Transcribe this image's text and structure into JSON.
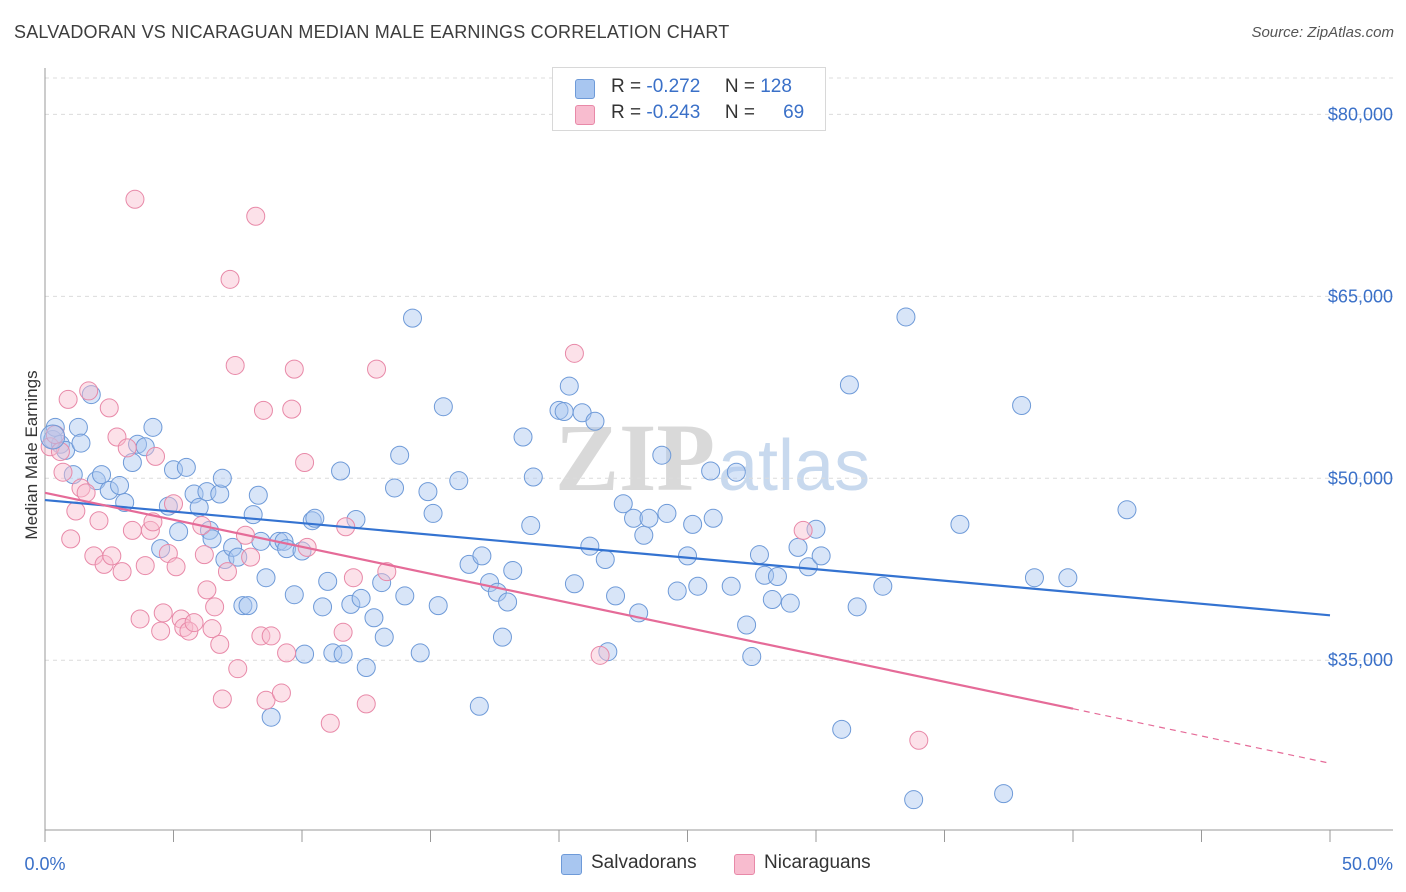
{
  "title": "SALVADORAN VS NICARAGUAN MEDIAN MALE EARNINGS CORRELATION CHART",
  "source": "Source: ZipAtlas.com",
  "watermark": {
    "zip": "ZIP",
    "atlas": "atlas"
  },
  "legend": {
    "rows": [
      {
        "r_label": "R =",
        "r_value": "-0.272",
        "n_label": "N =",
        "n_value": "128",
        "color": "#a8c6f0",
        "border": "#6e9ad8"
      },
      {
        "r_label": "R =",
        "r_value": "-0.243",
        "n_label": "N =",
        "n_value": "69",
        "color": "#f8bccf",
        "border": "#e889a8"
      }
    ]
  },
  "bottom_legend": [
    "Salvadorans",
    "Nicaraguans"
  ],
  "chart_data": {
    "type": "scatter",
    "xlabel": "",
    "ylabel": "Median Male Earnings",
    "xlim": [
      0,
      50
    ],
    "ylim": [
      21000,
      83000
    ],
    "x_tick_labels": [
      "0.0%",
      "50.0%"
    ],
    "y_tick_labels": [
      "$80,000",
      "$65,000",
      "$50,000",
      "$35,000"
    ],
    "y_ticks": [
      80000,
      65000,
      50000,
      35000
    ],
    "grid": true,
    "colors": {
      "salvadorans": "#5a8fd8",
      "nicaraguans": "#ee92b0",
      "blue_line": "#3473d1",
      "pink_line": "#e56b98",
      "axis_text": "#3a70c8"
    },
    "series": [
      {
        "name": "Salvadorans",
        "trend": {
          "x0": 0,
          "y0": 48200,
          "x1": 50,
          "y1": 38700
        },
        "points": [
          [
            0.3,
            53200
          ],
          [
            0.4,
            54200
          ],
          [
            0.6,
            52800
          ],
          [
            0.8,
            52300
          ],
          [
            1.1,
            50300
          ],
          [
            1.3,
            54200
          ],
          [
            1.4,
            52900
          ],
          [
            1.8,
            56900
          ],
          [
            2.0,
            49800
          ],
          [
            2.2,
            50300
          ],
          [
            2.5,
            49000
          ],
          [
            2.9,
            49400
          ],
          [
            3.1,
            48000
          ],
          [
            3.4,
            51300
          ],
          [
            3.6,
            52800
          ],
          [
            3.9,
            52600
          ],
          [
            4.2,
            54200
          ],
          [
            4.5,
            44200
          ],
          [
            4.8,
            47700
          ],
          [
            5.0,
            50700
          ],
          [
            5.2,
            45600
          ],
          [
            5.5,
            50900
          ],
          [
            5.8,
            48700
          ],
          [
            6.0,
            47600
          ],
          [
            6.3,
            48900
          ],
          [
            6.4,
            45700
          ],
          [
            6.5,
            45000
          ],
          [
            6.8,
            48700
          ],
          [
            6.9,
            50000
          ],
          [
            7.0,
            43300
          ],
          [
            7.3,
            44300
          ],
          [
            7.5,
            43500
          ],
          [
            7.7,
            39500
          ],
          [
            7.9,
            39500
          ],
          [
            8.1,
            47000
          ],
          [
            8.3,
            48600
          ],
          [
            8.4,
            44800
          ],
          [
            8.6,
            41800
          ],
          [
            8.8,
            30300
          ],
          [
            9.1,
            44800
          ],
          [
            9.3,
            44800
          ],
          [
            9.4,
            44200
          ],
          [
            9.7,
            40400
          ],
          [
            10.0,
            44000
          ],
          [
            10.1,
            35500
          ],
          [
            10.4,
            46500
          ],
          [
            10.5,
            46700
          ],
          [
            10.8,
            39400
          ],
          [
            11.0,
            41500
          ],
          [
            11.2,
            35600
          ],
          [
            11.5,
            50600
          ],
          [
            11.6,
            35500
          ],
          [
            11.9,
            39600
          ],
          [
            12.1,
            46600
          ],
          [
            12.3,
            40100
          ],
          [
            12.5,
            34400
          ],
          [
            12.8,
            38500
          ],
          [
            13.1,
            41400
          ],
          [
            13.2,
            36900
          ],
          [
            13.6,
            49200
          ],
          [
            13.8,
            51900
          ],
          [
            14.0,
            40300
          ],
          [
            14.3,
            63200
          ],
          [
            14.6,
            35600
          ],
          [
            14.9,
            48900
          ],
          [
            15.1,
            47100
          ],
          [
            15.3,
            39500
          ],
          [
            15.5,
            55900
          ],
          [
            16.1,
            49800
          ],
          [
            16.5,
            42900
          ],
          [
            16.9,
            31200
          ],
          [
            17.0,
            43600
          ],
          [
            17.3,
            41400
          ],
          [
            17.6,
            40600
          ],
          [
            17.8,
            36900
          ],
          [
            18.0,
            39800
          ],
          [
            18.2,
            42400
          ],
          [
            18.6,
            53400
          ],
          [
            18.9,
            46100
          ],
          [
            19.0,
            50100
          ],
          [
            20.0,
            55600
          ],
          [
            20.2,
            55500
          ],
          [
            20.4,
            57600
          ],
          [
            20.6,
            41300
          ],
          [
            20.9,
            55400
          ],
          [
            21.2,
            44400
          ],
          [
            21.4,
            54700
          ],
          [
            21.8,
            43300
          ],
          [
            21.9,
            35700
          ],
          [
            22.2,
            40300
          ],
          [
            22.5,
            47900
          ],
          [
            22.9,
            46700
          ],
          [
            23.1,
            38900
          ],
          [
            23.3,
            45300
          ],
          [
            23.5,
            46700
          ],
          [
            24.0,
            51900
          ],
          [
            24.2,
            47100
          ],
          [
            24.6,
            40700
          ],
          [
            25.0,
            43600
          ],
          [
            25.2,
            46200
          ],
          [
            25.4,
            41100
          ],
          [
            25.9,
            50600
          ],
          [
            26.0,
            46700
          ],
          [
            26.7,
            41100
          ],
          [
            26.9,
            50500
          ],
          [
            27.3,
            37900
          ],
          [
            27.5,
            35300
          ],
          [
            27.8,
            43700
          ],
          [
            28.0,
            42000
          ],
          [
            28.3,
            40000
          ],
          [
            28.5,
            41900
          ],
          [
            29.0,
            39700
          ],
          [
            29.3,
            44300
          ],
          [
            29.7,
            42700
          ],
          [
            30.0,
            45800
          ],
          [
            30.2,
            43600
          ],
          [
            31.0,
            29300
          ],
          [
            31.3,
            57700
          ],
          [
            31.6,
            39400
          ],
          [
            32.6,
            41100
          ],
          [
            33.5,
            63300
          ],
          [
            33.8,
            23500
          ],
          [
            35.6,
            46200
          ],
          [
            37.3,
            24000
          ],
          [
            38.0,
            56000
          ],
          [
            38.5,
            41800
          ],
          [
            39.8,
            41800
          ],
          [
            42.1,
            47400
          ]
        ]
      },
      {
        "name": "Nicaraguans",
        "trend": {
          "x0": 0,
          "y0": 48800,
          "x1": 40,
          "y1": 31000,
          "dash_x1": 50,
          "dash_y1": 26500
        },
        "points": [
          [
            0.2,
            52600
          ],
          [
            0.4,
            53600
          ],
          [
            0.6,
            52200
          ],
          [
            0.7,
            50500
          ],
          [
            0.9,
            56500
          ],
          [
            1.0,
            45000
          ],
          [
            1.2,
            47300
          ],
          [
            1.4,
            49200
          ],
          [
            1.6,
            48800
          ],
          [
            1.7,
            57200
          ],
          [
            1.9,
            43600
          ],
          [
            2.1,
            46500
          ],
          [
            2.3,
            42900
          ],
          [
            2.5,
            55800
          ],
          [
            2.6,
            43600
          ],
          [
            2.8,
            53400
          ],
          [
            3.0,
            42300
          ],
          [
            3.2,
            52500
          ],
          [
            3.4,
            45700
          ],
          [
            3.5,
            73000
          ],
          [
            3.7,
            38400
          ],
          [
            3.9,
            42800
          ],
          [
            4.1,
            45700
          ],
          [
            4.2,
            46400
          ],
          [
            4.3,
            51800
          ],
          [
            4.5,
            37400
          ],
          [
            4.6,
            38900
          ],
          [
            4.8,
            43800
          ],
          [
            5.0,
            47900
          ],
          [
            5.1,
            42700
          ],
          [
            5.3,
            38400
          ],
          [
            5.4,
            37700
          ],
          [
            5.6,
            37400
          ],
          [
            5.8,
            38100
          ],
          [
            6.1,
            46100
          ],
          [
            6.2,
            43700
          ],
          [
            6.3,
            40800
          ],
          [
            6.5,
            37600
          ],
          [
            6.6,
            39400
          ],
          [
            6.8,
            36300
          ],
          [
            6.9,
            31800
          ],
          [
            7.1,
            42300
          ],
          [
            7.2,
            66400
          ],
          [
            7.4,
            59300
          ],
          [
            7.5,
            34300
          ],
          [
            7.8,
            45300
          ],
          [
            8.0,
            43500
          ],
          [
            8.2,
            71600
          ],
          [
            8.4,
            37000
          ],
          [
            8.5,
            55600
          ],
          [
            8.6,
            31700
          ],
          [
            8.8,
            37000
          ],
          [
            9.2,
            32300
          ],
          [
            9.4,
            35600
          ],
          [
            9.6,
            55700
          ],
          [
            9.7,
            59000
          ],
          [
            10.1,
            51300
          ],
          [
            10.2,
            44300
          ],
          [
            11.1,
            29800
          ],
          [
            11.6,
            37300
          ],
          [
            11.7,
            46000
          ],
          [
            12.0,
            41800
          ],
          [
            12.5,
            31400
          ],
          [
            12.9,
            59000
          ],
          [
            13.3,
            42300
          ],
          [
            20.6,
            60300
          ],
          [
            21.6,
            35400
          ],
          [
            29.5,
            45700
          ],
          [
            34.0,
            28400
          ]
        ]
      }
    ]
  }
}
